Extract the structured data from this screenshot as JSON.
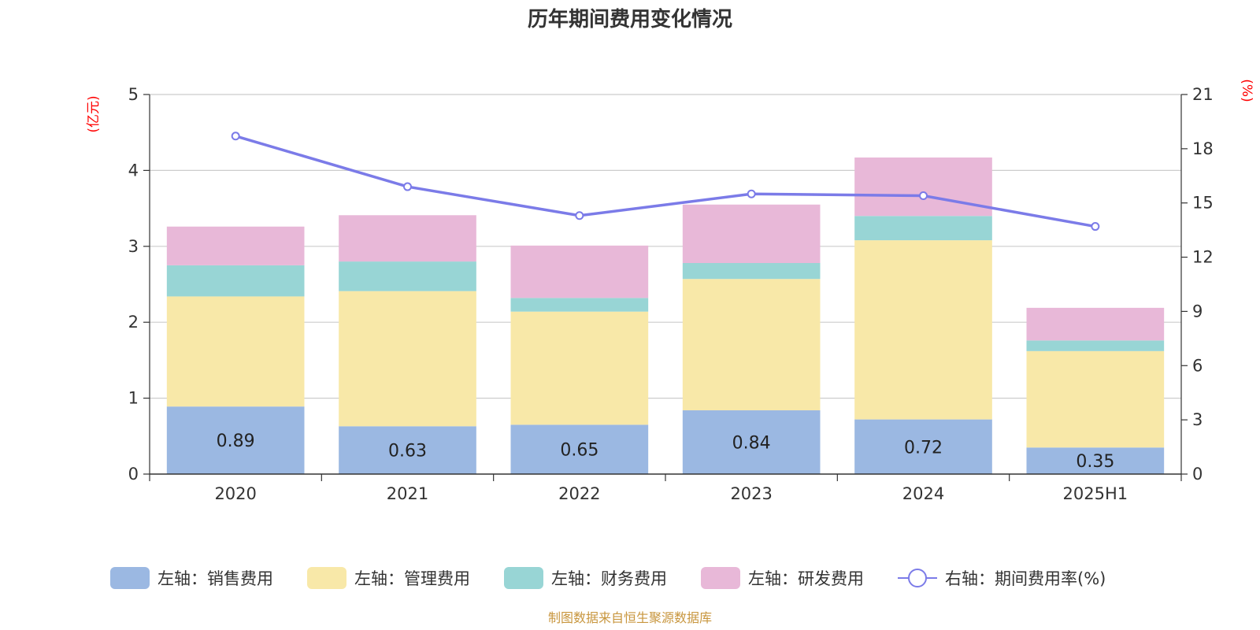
{
  "chart_data": {
    "type": "bar",
    "title": "历年期间费用变化情况",
    "left_unit": "(亿元)",
    "right_unit": "(%)",
    "categories": [
      "2020",
      "2021",
      "2022",
      "2023",
      "2024",
      "2025H1"
    ],
    "ylim_left": [
      0,
      5
    ],
    "yticks_left": [
      "0",
      "1",
      "2",
      "3",
      "4",
      "5"
    ],
    "ylim_right": [
      0,
      21
    ],
    "yticks_right": [
      "0",
      "3",
      "6",
      "9",
      "12",
      "15",
      "18",
      "21"
    ],
    "stacked": true,
    "grid": true,
    "legend_position": "bottom",
    "series": [
      {
        "name": "左轴：销售费用",
        "type": "bar",
        "color": "#9bb8e2",
        "values": [
          0.89,
          0.63,
          0.65,
          0.84,
          0.72,
          0.35
        ],
        "show_labels": true
      },
      {
        "name": "左轴：管理费用",
        "type": "bar",
        "color": "#f8e8a8",
        "values": [
          1.45,
          1.78,
          1.49,
          1.73,
          2.36,
          1.27
        ]
      },
      {
        "name": "左轴：财务费用",
        "type": "bar",
        "color": "#98d5d5",
        "values": [
          0.41,
          0.39,
          0.18,
          0.21,
          0.32,
          0.14
        ]
      },
      {
        "name": "左轴：研发费用",
        "type": "bar",
        "color": "#e8b8d8",
        "values": [
          0.51,
          0.61,
          0.69,
          0.77,
          0.77,
          0.43
        ]
      },
      {
        "name": "右轴：期间费用率(%)",
        "type": "line",
        "axis": "right",
        "color": "#7b7be8",
        "values": [
          18.7,
          15.9,
          14.3,
          15.5,
          15.4,
          13.7
        ]
      }
    ]
  },
  "footer": {
    "source": "制图数据来自恒生聚源数据库"
  }
}
